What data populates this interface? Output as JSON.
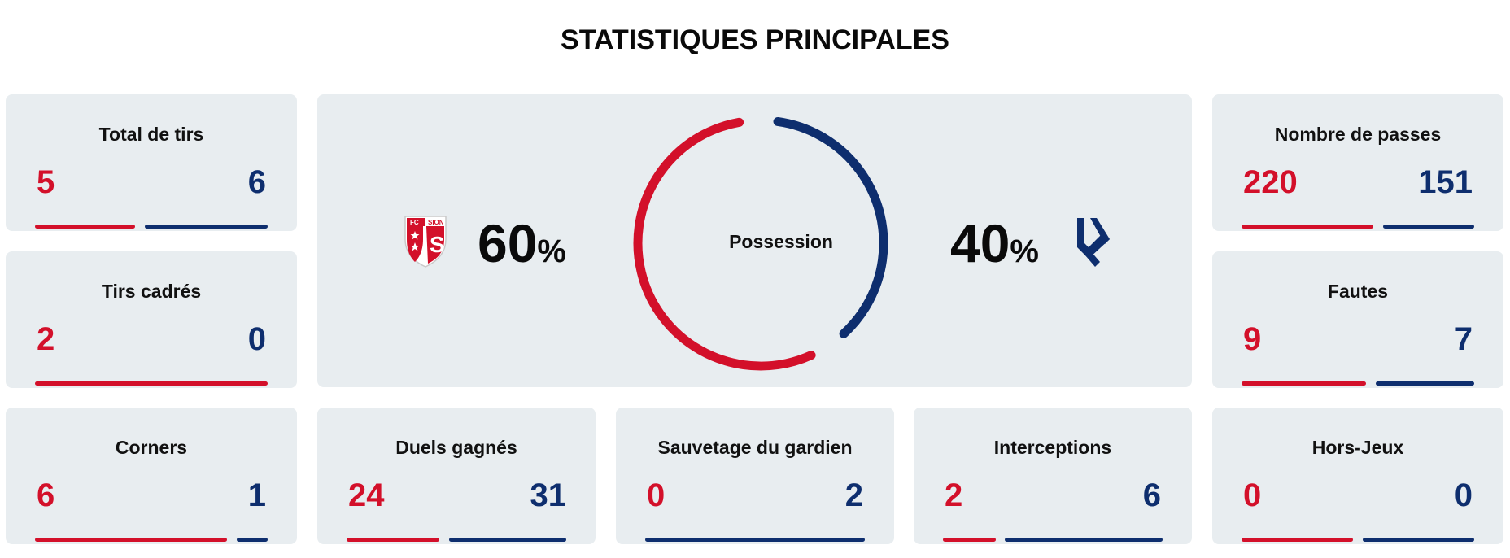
{
  "title": "STATISTIQUES PRINCIPALES",
  "colors": {
    "home": "#d3102a",
    "away": "#0e2e6e",
    "card": "#e8edf0"
  },
  "possession": {
    "label": "Possession",
    "home_value": "60",
    "away_value": "40",
    "unit": "%",
    "home_fraction": 0.6,
    "away_fraction": 0.4,
    "home_logo": {
      "icon": "fc-sion-crest-icon",
      "text_left": "FC",
      "text_right": "SION",
      "letter": "S"
    },
    "away_logo": {
      "icon": "fc-lausanne-sport-logo-icon"
    }
  },
  "stats": {
    "total_shots": {
      "label": "Total de tirs",
      "home": "5",
      "away": "6",
      "home_share": 0.45,
      "away_share": 0.55
    },
    "shots_on_target": {
      "label": "Tirs cadrés",
      "home": "2",
      "away": "0",
      "home_share": 1.0,
      "away_share": 0.0
    },
    "corners": {
      "label": "Corners",
      "home": "6",
      "away": "1",
      "home_share": 0.86,
      "away_share": 0.14
    },
    "duels_won": {
      "label": "Duels gagnés",
      "home": "24",
      "away": "31",
      "home_share": 0.44,
      "away_share": 0.56
    },
    "goalkeeper_saves": {
      "label": "Sauvetage du gardien",
      "home": "0",
      "away": "2",
      "home_share": 0.0,
      "away_share": 1.0
    },
    "interceptions": {
      "label": "Interceptions",
      "home": "2",
      "away": "6",
      "home_share": 0.25,
      "away_share": 0.75
    },
    "passes": {
      "label": "Nombre de passes",
      "home": "220",
      "away": "151",
      "home_share": 0.59,
      "away_share": 0.41
    },
    "fouls": {
      "label": "Fautes",
      "home": "9",
      "away": "7",
      "home_share": 0.56,
      "away_share": 0.44
    },
    "offsides": {
      "label": "Hors-Jeux",
      "home": "0",
      "away": "0",
      "home_share": 0.5,
      "away_share": 0.5
    }
  }
}
